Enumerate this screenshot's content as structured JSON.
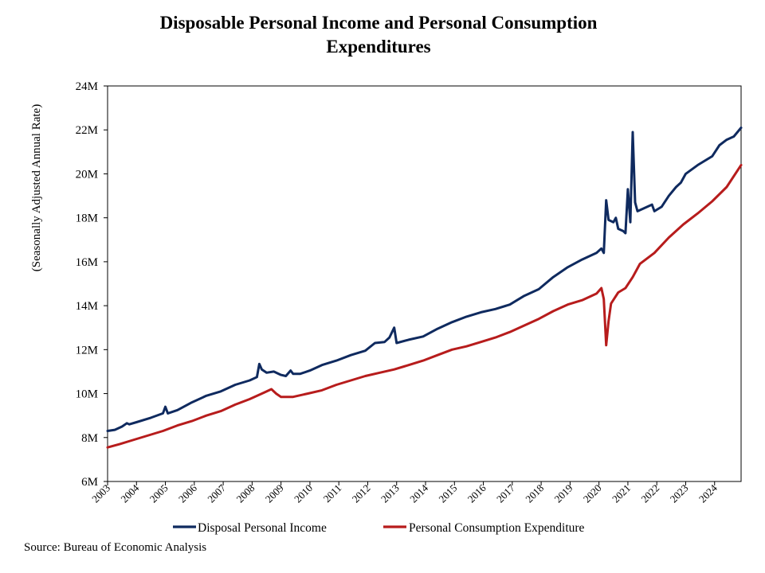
{
  "title_line1": "Disposable Personal Income and Personal Consumption",
  "title_line2": "Expenditures",
  "source": "Source: Bureau of Economic Analysis",
  "chart_data": {
    "type": "line",
    "title": "Disposable Personal Income and Personal Consumption Expenditures",
    "xlabel": "",
    "ylabel": "(Seasonally Adjusted Annual Rate)",
    "ylim": [
      6,
      24
    ],
    "ytick_values": [
      6,
      8,
      10,
      12,
      14,
      16,
      18,
      20,
      22,
      24
    ],
    "ytick_labels": [
      "6M",
      "8M",
      "10M",
      "12M",
      "14M",
      "16M",
      "18M",
      "20M",
      "22M",
      "24M"
    ],
    "xlim": [
      "2003-01",
      "2024-12"
    ],
    "xtick_labels": [
      "2003",
      "2004",
      "2005",
      "2006",
      "2007",
      "2008",
      "2009",
      "2010",
      "2011",
      "2012",
      "2013",
      "2014",
      "2015",
      "2016",
      "2017",
      "2018",
      "2019",
      "2020",
      "2021",
      "2022",
      "2023",
      "2024"
    ],
    "grid": false,
    "legend_position": "bottom",
    "series": [
      {
        "name": "Disposal Personal Income",
        "color": "#0f2a5f",
        "points": [
          [
            "2003-01",
            8.3
          ],
          [
            "2003-04",
            8.35
          ],
          [
            "2003-07",
            8.5
          ],
          [
            "2003-09",
            8.65
          ],
          [
            "2003-10",
            8.6
          ],
          [
            "2004-01",
            8.7
          ],
          [
            "2004-07",
            8.9
          ],
          [
            "2004-12",
            9.1
          ],
          [
            "2005-01",
            9.4
          ],
          [
            "2005-02",
            9.1
          ],
          [
            "2005-06",
            9.25
          ],
          [
            "2005-12",
            9.6
          ],
          [
            "2006-06",
            9.9
          ],
          [
            "2006-12",
            10.1
          ],
          [
            "2007-06",
            10.4
          ],
          [
            "2007-12",
            10.6
          ],
          [
            "2008-03",
            10.75
          ],
          [
            "2008-04",
            11.35
          ],
          [
            "2008-05",
            11.1
          ],
          [
            "2008-07",
            10.95
          ],
          [
            "2008-10",
            11.0
          ],
          [
            "2009-01",
            10.85
          ],
          [
            "2009-03",
            10.8
          ],
          [
            "2009-05",
            11.05
          ],
          [
            "2009-06",
            10.9
          ],
          [
            "2009-09",
            10.9
          ],
          [
            "2010-01",
            11.05
          ],
          [
            "2010-06",
            11.3
          ],
          [
            "2010-12",
            11.5
          ],
          [
            "2011-06",
            11.75
          ],
          [
            "2011-12",
            11.95
          ],
          [
            "2012-04",
            12.3
          ],
          [
            "2012-08",
            12.35
          ],
          [
            "2012-10",
            12.55
          ],
          [
            "2012-12",
            13.0
          ],
          [
            "2013-01",
            12.3
          ],
          [
            "2013-06",
            12.45
          ],
          [
            "2013-12",
            12.6
          ],
          [
            "2014-06",
            12.95
          ],
          [
            "2014-12",
            13.25
          ],
          [
            "2015-06",
            13.5
          ],
          [
            "2015-12",
            13.7
          ],
          [
            "2016-06",
            13.85
          ],
          [
            "2016-12",
            14.05
          ],
          [
            "2017-06",
            14.45
          ],
          [
            "2017-12",
            14.75
          ],
          [
            "2018-06",
            15.3
          ],
          [
            "2018-12",
            15.75
          ],
          [
            "2019-06",
            16.1
          ],
          [
            "2019-12",
            16.4
          ],
          [
            "2020-02",
            16.6
          ],
          [
            "2020-03",
            16.4
          ],
          [
            "2020-04",
            18.8
          ],
          [
            "2020-05",
            17.9
          ],
          [
            "2020-07",
            17.8
          ],
          [
            "2020-08",
            18.0
          ],
          [
            "2020-09",
            17.5
          ],
          [
            "2020-11",
            17.4
          ],
          [
            "2020-12",
            17.3
          ],
          [
            "2021-01",
            19.3
          ],
          [
            "2021-02",
            17.8
          ],
          [
            "2021-03",
            21.9
          ],
          [
            "2021-04",
            18.7
          ],
          [
            "2021-05",
            18.3
          ],
          [
            "2021-07",
            18.4
          ],
          [
            "2021-09",
            18.5
          ],
          [
            "2021-11",
            18.6
          ],
          [
            "2021-12",
            18.3
          ],
          [
            "2022-03",
            18.5
          ],
          [
            "2022-06",
            19.0
          ],
          [
            "2022-09",
            19.4
          ],
          [
            "2022-11",
            19.6
          ],
          [
            "2023-01",
            20.0
          ],
          [
            "2023-06",
            20.4
          ],
          [
            "2023-12",
            20.8
          ],
          [
            "2024-03",
            21.3
          ],
          [
            "2024-06",
            21.55
          ],
          [
            "2024-09",
            21.7
          ],
          [
            "2024-12",
            22.1
          ]
        ]
      },
      {
        "name": "Personal Consumption Expenditure",
        "color": "#b71c1c",
        "points": [
          [
            "2003-01",
            7.55
          ],
          [
            "2003-06",
            7.7
          ],
          [
            "2003-12",
            7.9
          ],
          [
            "2004-06",
            8.1
          ],
          [
            "2004-12",
            8.3
          ],
          [
            "2005-06",
            8.55
          ],
          [
            "2005-12",
            8.75
          ],
          [
            "2006-06",
            9.0
          ],
          [
            "2006-12",
            9.2
          ],
          [
            "2007-06",
            9.5
          ],
          [
            "2007-12",
            9.75
          ],
          [
            "2008-06",
            10.05
          ],
          [
            "2008-09",
            10.2
          ],
          [
            "2008-11",
            10.0
          ],
          [
            "2009-01",
            9.85
          ],
          [
            "2009-06",
            9.85
          ],
          [
            "2009-12",
            10.0
          ],
          [
            "2010-06",
            10.15
          ],
          [
            "2010-12",
            10.4
          ],
          [
            "2011-06",
            10.6
          ],
          [
            "2011-12",
            10.8
          ],
          [
            "2012-06",
            10.95
          ],
          [
            "2012-12",
            11.1
          ],
          [
            "2013-06",
            11.3
          ],
          [
            "2013-12",
            11.5
          ],
          [
            "2014-06",
            11.75
          ],
          [
            "2014-12",
            12.0
          ],
          [
            "2015-06",
            12.15
          ],
          [
            "2015-12",
            12.35
          ],
          [
            "2016-06",
            12.55
          ],
          [
            "2016-12",
            12.8
          ],
          [
            "2017-06",
            13.1
          ],
          [
            "2017-12",
            13.4
          ],
          [
            "2018-06",
            13.75
          ],
          [
            "2018-12",
            14.05
          ],
          [
            "2019-06",
            14.25
          ],
          [
            "2019-12",
            14.55
          ],
          [
            "2020-02",
            14.8
          ],
          [
            "2020-03",
            14.3
          ],
          [
            "2020-04",
            12.2
          ],
          [
            "2020-05",
            13.3
          ],
          [
            "2020-06",
            14.1
          ],
          [
            "2020-09",
            14.6
          ],
          [
            "2020-12",
            14.8
          ],
          [
            "2021-03",
            15.3
          ],
          [
            "2021-06",
            15.9
          ],
          [
            "2021-12",
            16.4
          ],
          [
            "2022-06",
            17.1
          ],
          [
            "2022-12",
            17.7
          ],
          [
            "2023-06",
            18.2
          ],
          [
            "2023-12",
            18.75
          ],
          [
            "2024-06",
            19.4
          ],
          [
            "2024-12",
            20.4
          ]
        ]
      }
    ]
  }
}
